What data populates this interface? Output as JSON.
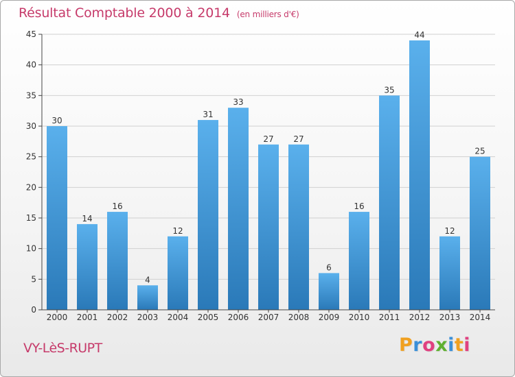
{
  "header": {
    "title": "Résultat Comptable 2000 à 2014",
    "subtitle": "(en milliers d'€)"
  },
  "footer": {
    "place": "VY-LèS-RUPT",
    "logo_text": "Proxiti",
    "logo_colors": [
      "#f0a020",
      "#3a8fd8",
      "#e04080",
      "#60b030",
      "#3a8fd8",
      "#f0a020",
      "#e04080"
    ]
  },
  "colors": {
    "bar_top": "#5ab0ec",
    "bar_bottom": "#2a79b8",
    "accent": "#c63a6a",
    "axis": "#444444",
    "grid": "#d0d0d0"
  },
  "chart_data": {
    "type": "bar",
    "title": "Résultat Comptable 2000 à 2014",
    "subtitle": "(en milliers d'€)",
    "categories": [
      "2000",
      "2001",
      "2002",
      "2003",
      "2004",
      "2005",
      "2006",
      "2007",
      "2008",
      "2009",
      "2010",
      "2011",
      "2012",
      "2013",
      "2014"
    ],
    "values": [
      30,
      14,
      16,
      4,
      12,
      31,
      33,
      27,
      27,
      6,
      16,
      35,
      44,
      12,
      25
    ],
    "ylim": [
      0,
      45
    ],
    "yticks": [
      0,
      5,
      10,
      15,
      20,
      25,
      30,
      35,
      40,
      45
    ],
    "grid": true,
    "data_labels": true
  }
}
